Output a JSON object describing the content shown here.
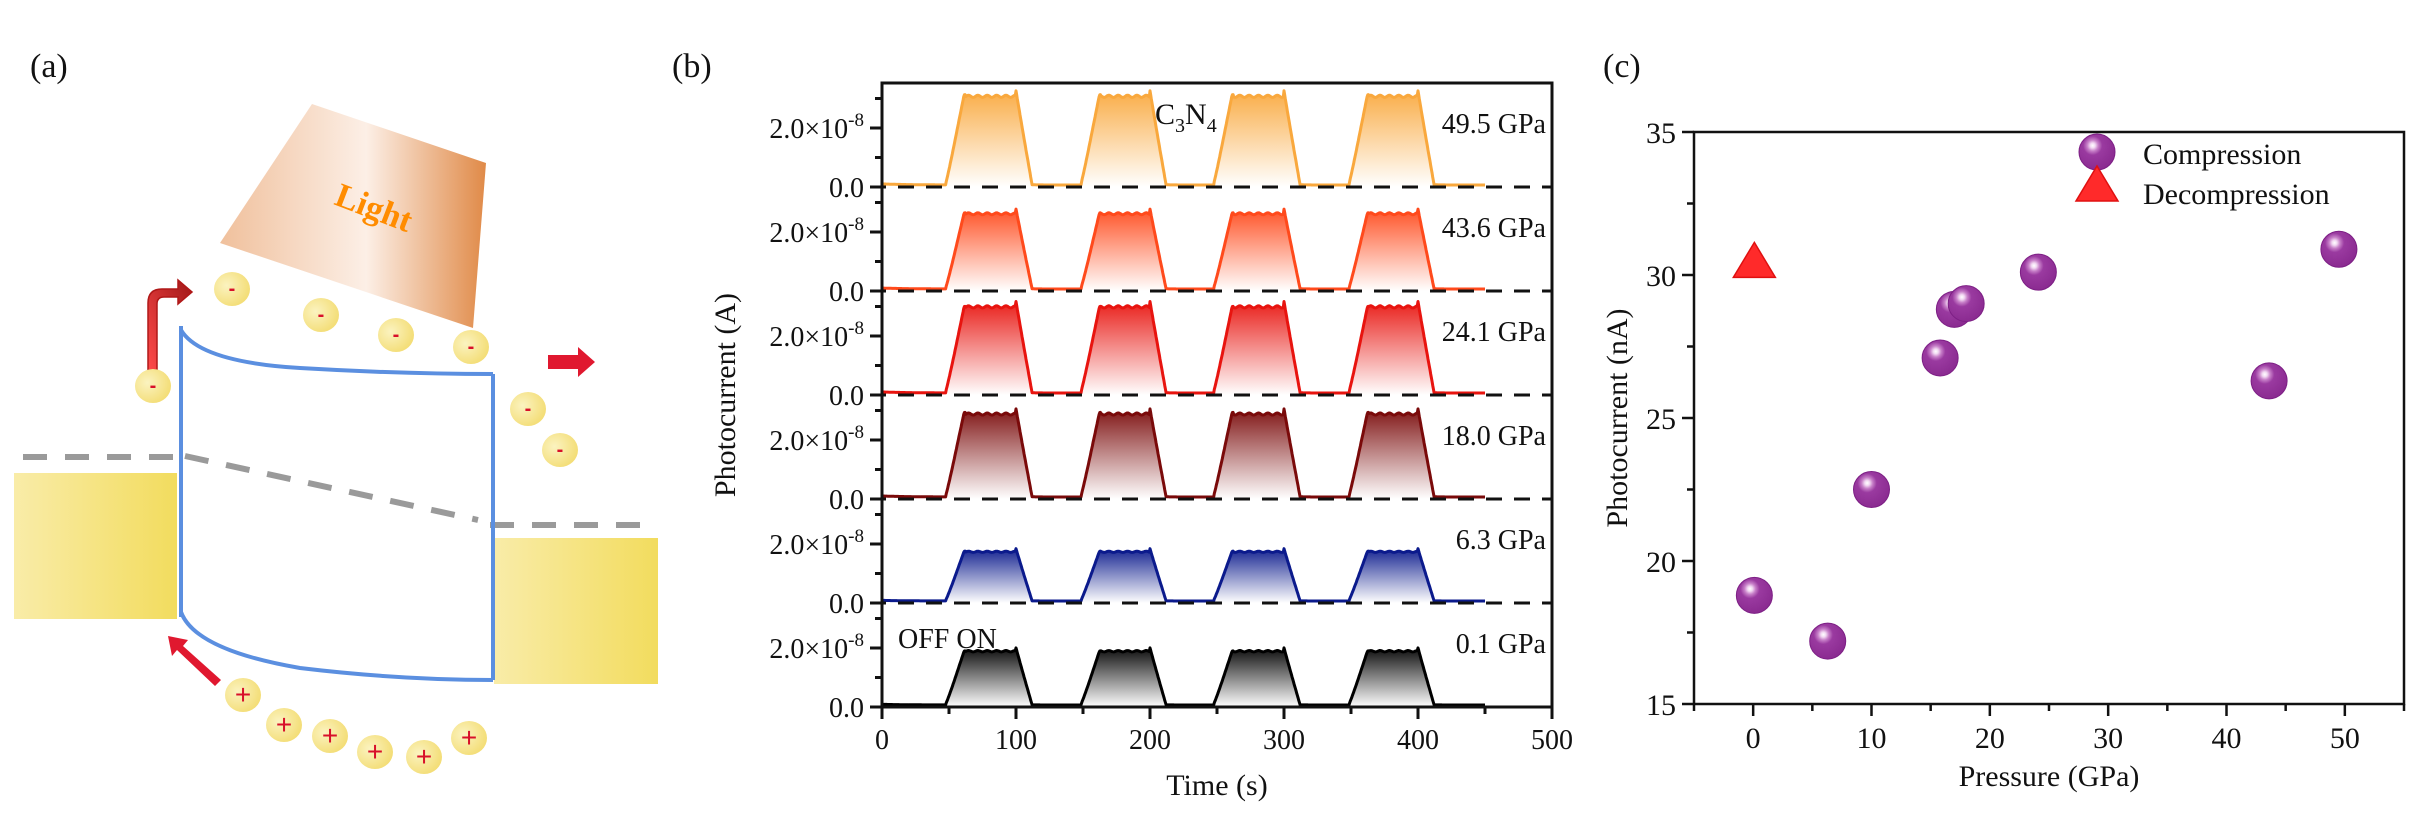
{
  "panels": {
    "a": {
      "label": "(a)",
      "light_label": "Light",
      "electron_symbol": "-",
      "hole_symbol": "+",
      "colors": {
        "light": "#e8935a",
        "light_text": "#ff8c00",
        "band": "#5b8fe0",
        "charge_fill": "#f7e27a",
        "charge_sign": "#d8102a",
        "arrow": "#e0182f",
        "fermi": "#999999",
        "electrode": "#f2d95a"
      }
    },
    "b": {
      "label": "(b)",
      "species_label_main": "C",
      "species_sub1": "3",
      "species_label_mid": "N",
      "species_sub2": "4",
      "off_on_label": "OFF ON"
    },
    "c": {
      "label": "(c)"
    }
  },
  "chart_data": [
    {
      "type": "line",
      "title": "",
      "xlabel": "Time (s)",
      "ylabel": "Photocurrent (A)",
      "xlim": [
        0,
        500
      ],
      "xticks": [
        "0",
        "100",
        "200",
        "300",
        "400",
        "500"
      ],
      "ytick_labels": [
        "0.0",
        "2.0×10",
        "-8"
      ],
      "panel_ylim_A": [
        0,
        3.5e-08
      ],
      "cycles_on_off_s": [
        [
          48,
          100
        ],
        [
          148,
          200
        ],
        [
          248,
          300
        ],
        [
          348,
          400
        ]
      ],
      "time_span_s": [
        0,
        450
      ],
      "series": [
        {
          "name": "49.5 GPa",
          "plateau_nA": 31.0,
          "color": "#f9a83d"
        },
        {
          "name": "43.6 GPa",
          "plateau_nA": 26.3,
          "color": "#ff4a1c"
        },
        {
          "name": "24.1 GPa",
          "plateau_nA": 30.1,
          "color": "#e8140f"
        },
        {
          "name": "18.0 GPa",
          "plateau_nA": 29.0,
          "color": "#7a0a0a"
        },
        {
          "name": "6.3 GPa",
          "plateau_nA": 17.2,
          "color": "#0b1a8c"
        },
        {
          "name": "0.1 GPa",
          "plateau_nA": 18.8,
          "color": "#000000"
        }
      ]
    },
    {
      "type": "scatter",
      "title": "",
      "xlabel": "Pressure (GPa)",
      "ylabel": "Photocurrent (nA)",
      "xlim": [
        -5,
        55
      ],
      "ylim": [
        15,
        35
      ],
      "xticks": [
        "0",
        "10",
        "20",
        "30",
        "40",
        "50"
      ],
      "yticks": [
        "15",
        "20",
        "25",
        "30",
        "35"
      ],
      "legend_position": "top-right",
      "series": [
        {
          "name": "Compression",
          "marker": "sphere",
          "color": "#93339a",
          "points": [
            [
              0.1,
              18.8
            ],
            [
              6.3,
              17.2
            ],
            [
              10.0,
              22.5
            ],
            [
              15.8,
              27.1
            ],
            [
              17.0,
              28.8
            ],
            [
              18.0,
              29.0
            ],
            [
              24.1,
              30.1
            ],
            [
              43.6,
              26.3
            ],
            [
              49.5,
              30.9
            ]
          ]
        },
        {
          "name": "Decompression",
          "marker": "triangle",
          "color": "#ff2a2a",
          "points": [
            [
              0.1,
              30.3
            ]
          ]
        }
      ]
    }
  ]
}
